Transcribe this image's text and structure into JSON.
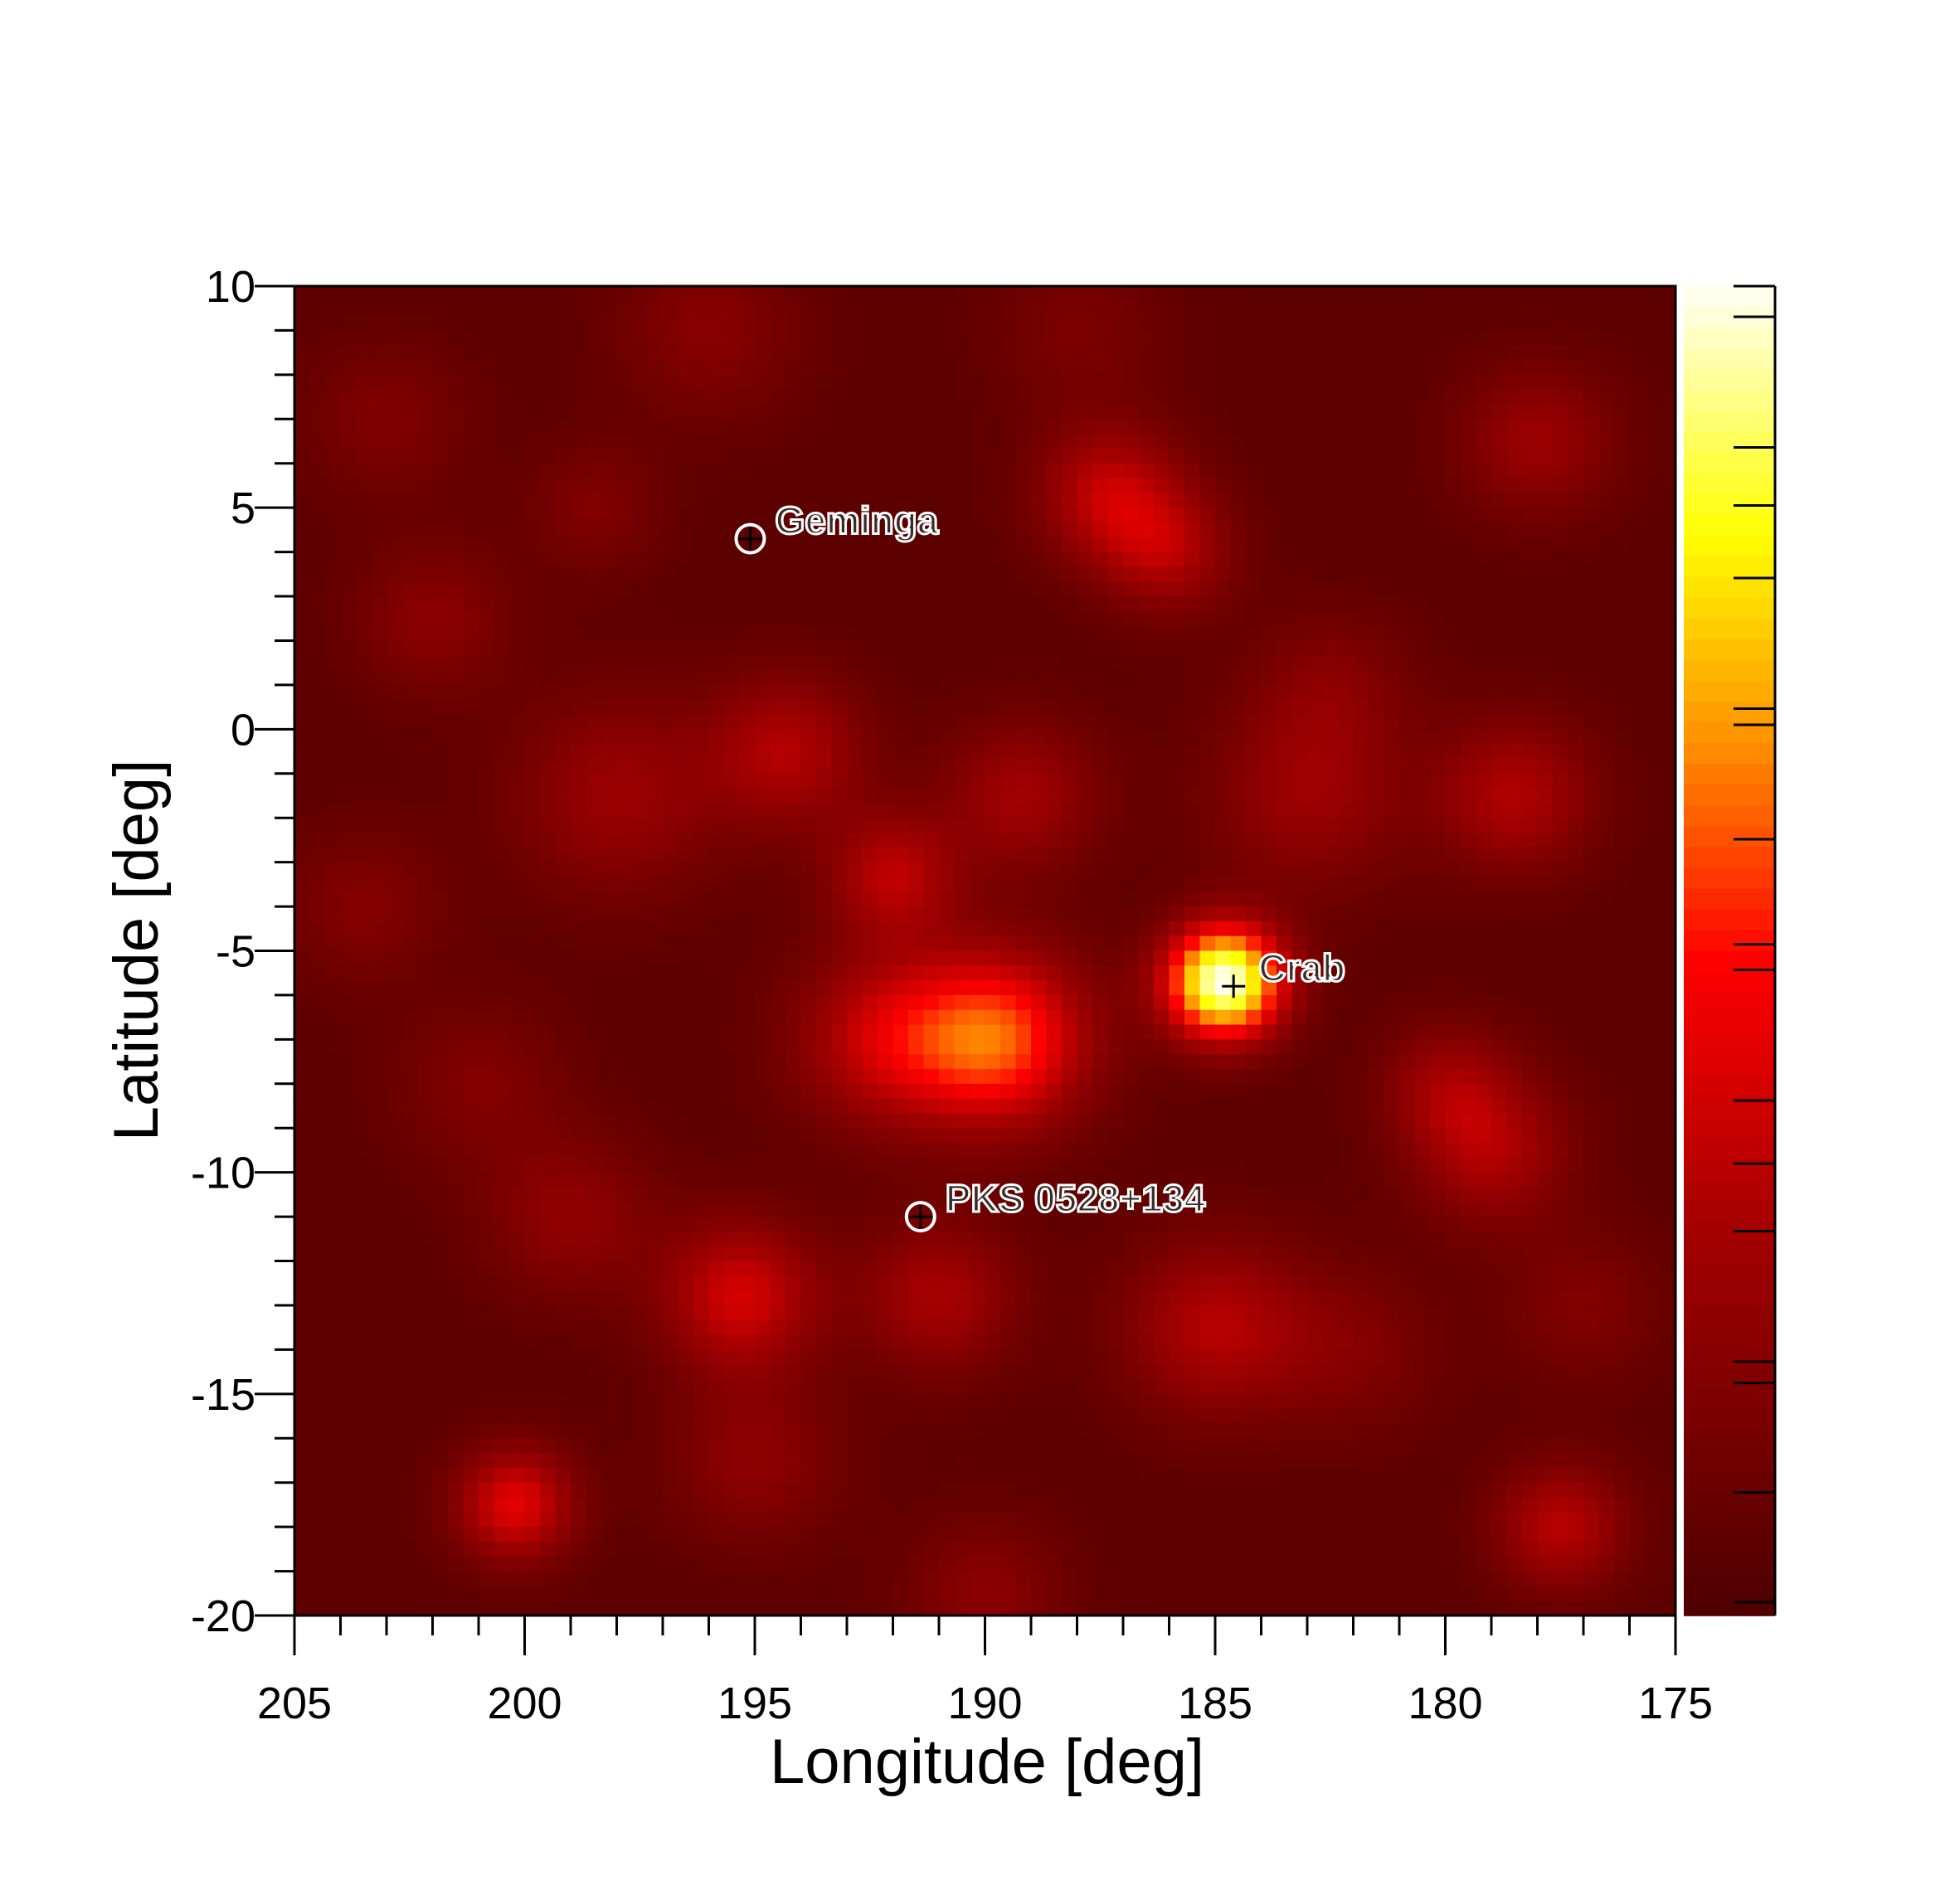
{
  "chart_data": {
    "type": "heatmap",
    "xlabel": "Longitude [deg]",
    "ylabel": "Latitude [deg]",
    "xlim": [
      205,
      175
    ],
    "ylim": [
      -20,
      10
    ],
    "x_ticks": [
      205,
      200,
      195,
      190,
      185,
      180,
      175
    ],
    "x_tick_labels": [
      "205",
      "200",
      "195",
      "190",
      "185",
      "180",
      "175"
    ],
    "y_ticks": [
      10,
      5,
      0,
      -5,
      -10,
      -15,
      -20
    ],
    "y_tick_labels": [
      "10",
      "5",
      "0",
      "-5",
      "-10",
      "-15",
      "-20"
    ],
    "grid": false,
    "colorbar": {
      "scale": "black-red-yellow-white",
      "labels": "none"
    },
    "sources": [
      {
        "name": "Geminga",
        "lon": 195.1,
        "lat": 4.3,
        "circle": true
      },
      {
        "name": "Crab",
        "lon": 184.6,
        "lat": -5.8,
        "circle": false
      },
      {
        "name": "PKS 0528+134",
        "lon": 191.4,
        "lat": -11.0,
        "circle": true
      }
    ],
    "blobs": [
      {
        "lon": 184.8,
        "lat": -5.7,
        "amp": 0.95,
        "sig": 0.9
      },
      {
        "lon": 189.7,
        "lat": -7.0,
        "amp": 0.52,
        "sig": 1.4
      },
      {
        "lon": 192.2,
        "lat": -7.0,
        "amp": 0.3,
        "sig": 1.4
      },
      {
        "lon": 187.3,
        "lat": 5.3,
        "amp": 0.3,
        "sig": 1.1
      },
      {
        "lon": 186.0,
        "lat": 4.0,
        "amp": 0.24,
        "sig": 1.0
      },
      {
        "lon": 194.3,
        "lat": -0.5,
        "amp": 0.26,
        "sig": 1.2
      },
      {
        "lon": 192.0,
        "lat": -3.3,
        "amp": 0.28,
        "sig": 1.0
      },
      {
        "lon": 189.2,
        "lat": -1.5,
        "amp": 0.22,
        "sig": 1.2
      },
      {
        "lon": 183.0,
        "lat": -1.5,
        "amp": 0.2,
        "sig": 1.5
      },
      {
        "lon": 178.5,
        "lat": -1.5,
        "amp": 0.26,
        "sig": 1.2
      },
      {
        "lon": 179.0,
        "lat": -9.5,
        "amp": 0.25,
        "sig": 1.2
      },
      {
        "lon": 180.0,
        "lat": -8.0,
        "amp": 0.18,
        "sig": 1.0
      },
      {
        "lon": 195.3,
        "lat": -12.8,
        "amp": 0.34,
        "sig": 1.2
      },
      {
        "lon": 191.0,
        "lat": -12.8,
        "amp": 0.24,
        "sig": 1.2
      },
      {
        "lon": 185.0,
        "lat": -13.5,
        "amp": 0.27,
        "sig": 1.4
      },
      {
        "lon": 200.2,
        "lat": -17.5,
        "amp": 0.38,
        "sig": 0.9
      },
      {
        "lon": 177.5,
        "lat": -18.0,
        "amp": 0.28,
        "sig": 1.0
      },
      {
        "lon": 178.0,
        "lat": 6.5,
        "amp": 0.2,
        "sig": 1.2
      },
      {
        "lon": 198.0,
        "lat": -1.5,
        "amp": 0.2,
        "sig": 1.6
      },
      {
        "lon": 202.0,
        "lat": 2.5,
        "amp": 0.15,
        "sig": 1.2
      },
      {
        "lon": 196.0,
        "lat": 9.0,
        "amp": 0.14,
        "sig": 1.4
      },
      {
        "lon": 199.0,
        "lat": -11.0,
        "amp": 0.17,
        "sig": 1.3
      },
      {
        "lon": 195.0,
        "lat": -16.5,
        "amp": 0.16,
        "sig": 1.3
      },
      {
        "lon": 190.0,
        "lat": -19.5,
        "amp": 0.15,
        "sig": 1.2
      },
      {
        "lon": 203.5,
        "lat": -4.0,
        "amp": 0.13,
        "sig": 1.2
      },
      {
        "lon": 201.0,
        "lat": -8.0,
        "amp": 0.12,
        "sig": 1.3
      },
      {
        "lon": 182.5,
        "lat": 1.0,
        "amp": 0.12,
        "sig": 1.2
      },
      {
        "lon": 203.0,
        "lat": 7.0,
        "amp": 0.12,
        "sig": 1.2
      },
      {
        "lon": 182.0,
        "lat": -14.0,
        "amp": 0.12,
        "sig": 1.3
      },
      {
        "lon": 177.0,
        "lat": -13.0,
        "amp": 0.12,
        "sig": 1.2
      },
      {
        "lon": 188.0,
        "lat": 9.0,
        "amp": 0.1,
        "sig": 1.3
      },
      {
        "lon": 198.5,
        "lat": 5.0,
        "amp": 0.12,
        "sig": 1.0
      }
    ]
  }
}
